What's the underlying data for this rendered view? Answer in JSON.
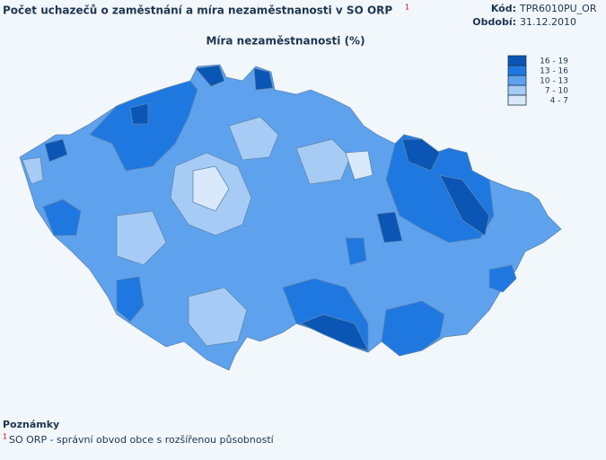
{
  "header": {
    "title": "Počet uchazečů o zaměstnání a míra nezaměstnanosti v SO ORP",
    "title_note": "1",
    "code_label": "Kód:",
    "code": "TPR6010PU_OR",
    "period_label": "Období:",
    "period": "31.12.2010"
  },
  "map": {
    "title": "Míra nezaměstnanosti (%)",
    "legend": {
      "items": [
        {
          "label": "16 - 19",
          "color": "#0b56b4"
        },
        {
          "label": "13 - 16",
          "color": "#1f78e0"
        },
        {
          "label": "10 - 13",
          "color": "#5ea2ee"
        },
        {
          "label": "7 - 10",
          "color": "#a6cbf4"
        },
        {
          "label": "4 - 7",
          "color": "#d9e9fb"
        }
      ]
    }
  },
  "notes": {
    "title": "Poznámky",
    "marker": "1",
    "text": "SO ORP - správní obvod obce s rozšířenou působností"
  }
}
